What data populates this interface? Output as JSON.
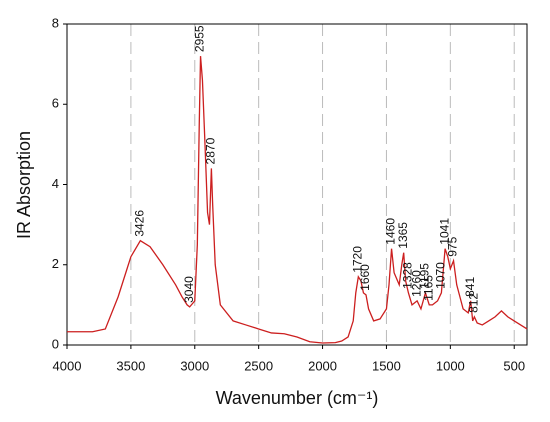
{
  "chart_data": {
    "type": "line",
    "ylabel": "IR Absorption",
    "xlabel": "Wavenumber (cm⁻¹)",
    "color": "#cc1f1f",
    "xlim": [
      4000,
      400
    ],
    "ylim": [
      0,
      8
    ],
    "xticks": [
      4000,
      3500,
      3000,
      2500,
      2000,
      1500,
      1000,
      500
    ],
    "yticks": [
      0,
      2,
      4,
      6,
      8
    ],
    "grid": true,
    "x": [
      4000,
      3800,
      3700,
      3600,
      3500,
      3426,
      3350,
      3250,
      3150,
      3100,
      3060,
      3040,
      3000,
      2980,
      2965,
      2955,
      2940,
      2920,
      2900,
      2885,
      2870,
      2860,
      2840,
      2800,
      2700,
      2600,
      2500,
      2400,
      2300,
      2200,
      2100,
      2000,
      1900,
      1850,
      1800,
      1760,
      1740,
      1720,
      1700,
      1680,
      1660,
      1640,
      1600,
      1550,
      1500,
      1480,
      1460,
      1440,
      1400,
      1380,
      1365,
      1350,
      1328,
      1300,
      1260,
      1230,
      1195,
      1165,
      1140,
      1100,
      1070,
      1041,
      1020,
      1000,
      975,
      950,
      900,
      860,
      841,
      825,
      812,
      790,
      750,
      700,
      650,
      600,
      550,
      500,
      450,
      400
    ],
    "values": [
      0.33,
      0.33,
      0.4,
      1.2,
      2.2,
      2.6,
      2.45,
      2.0,
      1.5,
      1.2,
      1.0,
      0.95,
      1.1,
      2.5,
      5.5,
      7.2,
      6.6,
      5.0,
      3.3,
      3.0,
      4.4,
      3.5,
      2.0,
      1.0,
      0.6,
      0.5,
      0.4,
      0.3,
      0.28,
      0.2,
      0.08,
      0.05,
      0.06,
      0.1,
      0.2,
      0.6,
      1.3,
      1.7,
      1.6,
      1.3,
      1.25,
      0.9,
      0.6,
      0.65,
      0.9,
      1.5,
      2.4,
      1.8,
      1.5,
      2.0,
      2.3,
      1.6,
      1.3,
      1.0,
      1.1,
      0.9,
      1.3,
      1.0,
      1.0,
      1.1,
      1.3,
      2.4,
      2.2,
      1.9,
      2.1,
      1.5,
      0.9,
      0.8,
      1.1,
      0.6,
      0.7,
      0.55,
      0.5,
      0.6,
      0.7,
      0.85,
      0.7,
      0.6,
      0.5,
      0.4
    ],
    "peak_labels": [
      3426,
      3040,
      2955,
      2870,
      1720,
      1660,
      1460,
      1365,
      1328,
      1260,
      1195,
      1165,
      1070,
      1041,
      975,
      841,
      812
    ]
  }
}
